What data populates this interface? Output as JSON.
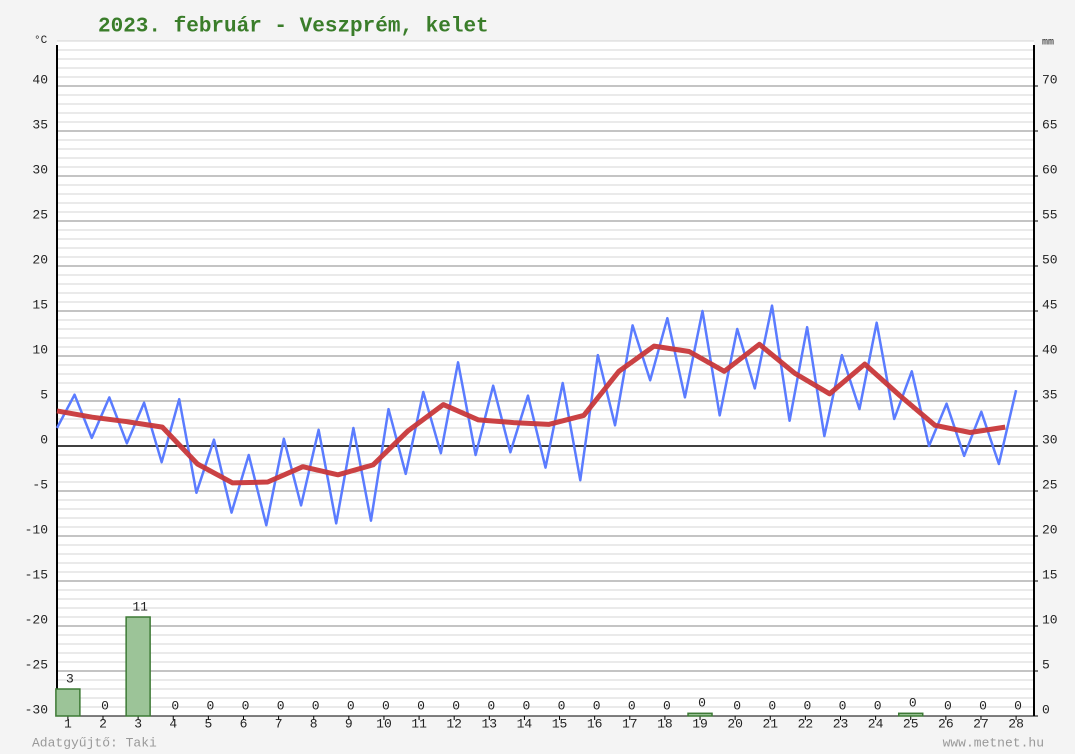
{
  "chart_data": {
    "type": "line",
    "title": "2023. február - Veszprém, kelet",
    "y_unit_label": "°C",
    "y2_unit_label": "mm",
    "source_left": "Adatgyűjtő: Taki",
    "source_right": "www.metnet.hu",
    "xlim": [
      0.69,
      28.51
    ],
    "xticks": [
      1,
      2,
      3,
      4,
      5,
      6,
      7,
      8,
      9,
      10,
      11,
      12,
      13,
      14,
      15,
      16,
      17,
      18,
      19,
      20,
      21,
      22,
      23,
      24,
      25,
      26,
      27,
      28
    ],
    "ylim": [
      -30,
      45
    ],
    "yticks": [
      -30,
      -25,
      -20,
      -15,
      -10,
      -5,
      0,
      5,
      10,
      15,
      20,
      25,
      30,
      35,
      40
    ],
    "y2lim": [
      0,
      75
    ],
    "y2ticks": [
      0,
      5,
      10,
      15,
      20,
      25,
      30,
      35,
      40,
      45,
      50,
      55,
      60,
      65,
      70
    ],
    "grid": true,
    "minor_grid": true,
    "series": [
      {
        "type": "line",
        "color": "#5b7cff",
        "x": [
          0.69,
          1.19,
          1.68,
          2.18,
          2.68,
          3.17,
          3.67,
          4.17,
          4.66,
          5.16,
          5.66,
          6.15,
          6.65,
          7.15,
          7.64,
          8.14,
          8.64,
          9.13,
          9.63,
          10.13,
          10.62,
          11.12,
          11.62,
          12.11,
          12.61,
          13.11,
          13.6,
          14.1,
          14.6,
          15.09,
          15.59,
          16.09,
          16.58,
          17.08,
          17.58,
          18.07,
          18.57,
          19.07,
          19.56,
          20.06,
          20.56,
          21.05,
          21.55,
          22.05,
          22.54,
          23.04,
          23.54,
          24.03,
          24.53,
          25.03,
          25.52,
          26.02,
          26.52,
          27.01,
          27.51,
          28.0
        ],
        "values": [
          2.0,
          5.7,
          0.9,
          5.4,
          0.3,
          4.8,
          -1.8,
          5.2,
          -5.2,
          0.7,
          -7.4,
          -1.0,
          -8.8,
          0.8,
          -6.6,
          1.8,
          -8.6,
          2.0,
          -8.3,
          4.1,
          -3.1,
          6.0,
          -0.8,
          9.3,
          -1.0,
          6.7,
          -0.7,
          5.6,
          -2.4,
          7.0,
          -3.8,
          10.1,
          2.3,
          13.4,
          7.3,
          14.2,
          5.4,
          15.0,
          3.4,
          13.0,
          6.4,
          15.6,
          2.8,
          13.2,
          1.1,
          10.1,
          4.1,
          13.7,
          3.0,
          8.3,
          0.0,
          4.7,
          -1.1,
          3.8,
          -2.0,
          6.2
        ]
      },
      {
        "type": "line",
        "color": "#c8383a",
        "x": [
          0.69,
          1.69,
          2.69,
          3.69,
          4.69,
          5.69,
          6.69,
          7.69,
          8.69,
          9.69,
          10.69,
          11.69,
          12.69,
          13.69,
          14.69,
          15.69,
          16.69,
          17.69,
          18.69,
          19.69,
          20.69,
          21.69,
          22.69,
          23.69,
          24.69,
          25.69,
          26.69,
          27.69
        ],
        "values": [
          3.9,
          3.2,
          2.7,
          2.1,
          -2.0,
          -4.1,
          -4.0,
          -2.3,
          -3.2,
          -2.1,
          1.7,
          4.6,
          2.9,
          2.6,
          2.4,
          3.4,
          8.3,
          11.1,
          10.5,
          8.3,
          11.3,
          8.1,
          5.8,
          9.1,
          5.6,
          2.3,
          1.5,
          2.1
        ]
      },
      {
        "type": "bar",
        "axis": "y2",
        "color": "#9cc498",
        "values": [
          3,
          0,
          11,
          0,
          0,
          0,
          0,
          0,
          0,
          0,
          0,
          0,
          0,
          0,
          0,
          0,
          0,
          0,
          0.3,
          0,
          0,
          0,
          0,
          0,
          0.3,
          0,
          0,
          0
        ],
        "value_labels": [
          "3",
          "0",
          "11",
          "0",
          "0",
          "0",
          "0",
          "0",
          "0",
          "0",
          "0",
          "0",
          "0",
          "0",
          "0",
          "0",
          "0",
          "0",
          "0",
          "0",
          "0",
          "0",
          "0",
          "0",
          "0",
          "0",
          "0",
          "0"
        ]
      }
    ]
  }
}
